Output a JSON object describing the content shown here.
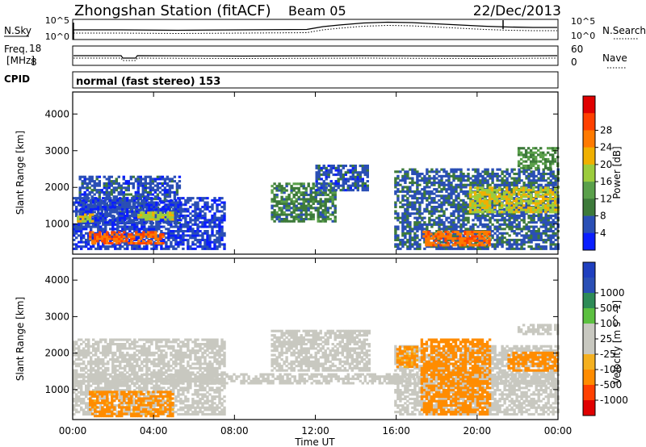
{
  "header": {
    "station_title": "Zhongshan Station (fitACF)",
    "beam": "Beam 05",
    "date": "22/Dec/2013"
  },
  "top_panels": {
    "nsky_label": "N.Sky",
    "nsky_ticks": [
      "10^5",
      "10^0"
    ],
    "nsearch_label": "N.Search",
    "nsearch_ticks": [
      "10^5",
      "10^0"
    ],
    "freq_label_line1": "Freq.",
    "freq_label_line2": "[MHz]",
    "freq_ticks": [
      "18",
      "8"
    ],
    "nave_label": "Nave",
    "nave_ticks": [
      "60",
      "0"
    ],
    "cpid_label": "CPID",
    "cpid_value": "normal (fast stereo) 153"
  },
  "colors": {
    "power_scale": [
      "#0a1eff",
      "#2a4fb5",
      "#3d7a3a",
      "#5aa04a",
      "#9ccc3c",
      "#f0b000",
      "#ff7a00",
      "#ff4000",
      "#e00000"
    ],
    "velocity_scale": [
      "#e00000",
      "#ff4000",
      "#ff8c00",
      "#f4b020",
      "#c8c8c0",
      "#c8c8c0",
      "#5cc040",
      "#2e8b57",
      "#2a4fb5",
      "#1f3fbf"
    ],
    "grey_band": "#c8c8c0"
  },
  "chart_data": [
    {
      "type": "line",
      "name": "N.Sky / N.Search",
      "y_scale": "log",
      "ylim": [
        1,
        100000
      ],
      "xlim": [
        "00:00",
        "24:00"
      ]
    },
    {
      "type": "line",
      "name": "Freq. / Nave",
      "ylim": [
        8,
        18
      ],
      "y2lim": [
        0,
        60
      ],
      "xlim": [
        "00:00",
        "24:00"
      ]
    },
    {
      "type": "heatmap",
      "name": "Power",
      "ylabel": "Slant Range [km]",
      "yticks": [
        "1000",
        "2000",
        "3000",
        "4000"
      ],
      "ylim": [
        180,
        4600
      ],
      "colorbar_label": "Power [dB]",
      "colorbar_ticks": [
        "4",
        "8",
        "12",
        "16",
        "20",
        "24",
        "28"
      ],
      "colorbar_range": [
        0,
        32
      ],
      "regions": [
        {
          "t0": 0.3,
          "t1": 5.3,
          "r0": 1000,
          "r1": 2300,
          "value": 6
        },
        {
          "t0": 0.0,
          "t1": 7.5,
          "r0": 300,
          "r1": 1700,
          "value": 5
        },
        {
          "t0": 0.8,
          "t1": 4.5,
          "r0": 450,
          "r1": 800,
          "value": 28
        },
        {
          "t0": 0.2,
          "t1": 1.0,
          "r0": 1050,
          "r1": 1250,
          "value": 20
        },
        {
          "t0": 3.2,
          "t1": 5.0,
          "r0": 1100,
          "r1": 1300,
          "value": 19
        },
        {
          "t0": 9.8,
          "t1": 13.0,
          "r0": 1050,
          "r1": 2100,
          "value": 10
        },
        {
          "t0": 12.0,
          "t1": 14.6,
          "r0": 1900,
          "r1": 2600,
          "value": 6
        },
        {
          "t0": 15.9,
          "t1": 24.0,
          "r0": 300,
          "r1": 2500,
          "value": 7
        },
        {
          "t0": 17.3,
          "t1": 20.6,
          "r0": 400,
          "r1": 800,
          "value": 27
        },
        {
          "t0": 19.6,
          "t1": 24.0,
          "r0": 1300,
          "r1": 2000,
          "value": 20
        },
        {
          "t0": 22.0,
          "t1": 24.0,
          "r0": 2500,
          "r1": 3100,
          "value": 12
        }
      ]
    },
    {
      "type": "heatmap",
      "name": "Velocity",
      "xlabel": "Time UT",
      "xticks": [
        "00:00",
        "04:00",
        "08:00",
        "12:00",
        "16:00",
        "20:00",
        "00:00"
      ],
      "ylabel": "Slant Range [km]",
      "yticks": [
        "1000",
        "2000",
        "3000",
        "4000"
      ],
      "ylim": [
        180,
        4600
      ],
      "colorbar_label": "Velocity [m s^-1]",
      "colorbar_ticks": [
        "-1000",
        "-500",
        "-100",
        "-25",
        "25",
        "100",
        "500",
        "1000"
      ],
      "colorbar_range": [
        -1500,
        1500
      ],
      "regions": [
        {
          "t0": 0.0,
          "t1": 7.5,
          "r0": 300,
          "r1": 2400,
          "value": 0
        },
        {
          "t0": 0.0,
          "t1": 24.0,
          "r0": 1150,
          "r1": 1450,
          "value": 0
        },
        {
          "t0": 0.8,
          "t1": 5.0,
          "r0": 250,
          "r1": 950,
          "value": -150
        },
        {
          "t0": 9.8,
          "t1": 14.6,
          "r0": 1500,
          "r1": 2600,
          "value": 0
        },
        {
          "t0": 15.9,
          "t1": 24.0,
          "r0": 300,
          "r1": 2200,
          "value": 0
        },
        {
          "t0": 16.0,
          "t1": 17.0,
          "r0": 1600,
          "r1": 2200,
          "value": -120
        },
        {
          "t0": 17.2,
          "t1": 20.6,
          "r0": 300,
          "r1": 2400,
          "value": -180
        },
        {
          "t0": 21.5,
          "t1": 24.0,
          "r0": 1500,
          "r1": 2000,
          "value": -160
        },
        {
          "t0": 22.0,
          "t1": 24.0,
          "r0": 2500,
          "r1": 2800,
          "value": 0
        }
      ]
    }
  ]
}
